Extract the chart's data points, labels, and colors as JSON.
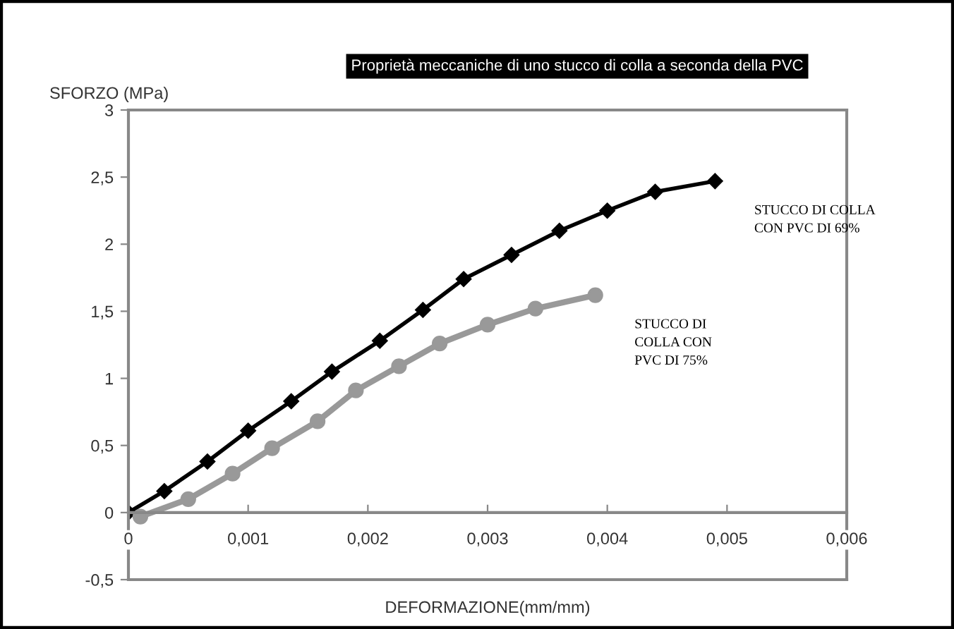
{
  "chart_data": {
    "type": "line",
    "title": "Proprietà meccaniche di uno stucco di colla a seconda della PVC",
    "ylabel": "SFORZO (MPa)",
    "xlabel": "DEFORMAZIONE(mm/mm)",
    "series": [
      {
        "name": "STUCCO DI COLLA\nCON PVC DI 69%",
        "color": "#000000",
        "marker": "diamond",
        "x": [
          0,
          0.0003,
          0.00066,
          0.001,
          0.00136,
          0.0017,
          0.0021,
          0.00246,
          0.0028,
          0.0032,
          0.0036,
          0.004,
          0.0044,
          0.0049
        ],
        "values": [
          0,
          0.16,
          0.38,
          0.61,
          0.83,
          1.05,
          1.28,
          1.51,
          1.74,
          1.92,
          2.1,
          2.25,
          2.39,
          2.47
        ]
      },
      {
        "name": "STUCCO DI\nCOLLA CON\nPVC DI 75%",
        "color": "#999999",
        "marker": "circle",
        "x": [
          0.0001,
          0.0005,
          0.00087,
          0.0012,
          0.00158,
          0.0019,
          0.00226,
          0.0026,
          0.003,
          0.0034,
          0.0039
        ],
        "values": [
          -0.03,
          0.1,
          0.29,
          0.48,
          0.68,
          0.91,
          1.09,
          1.26,
          1.4,
          1.52,
          1.62
        ]
      }
    ],
    "xlim": [
      0,
      0.006
    ],
    "ylim": [
      -0.5,
      3
    ],
    "xticks": [
      0,
      {
        "value": 0.001,
        "label": "0,001"
      },
      {
        "value": 0.002,
        "label": "0,002"
      },
      {
        "value": 0.003,
        "label": "0,003"
      },
      {
        "value": 0.004,
        "label": "0,004"
      },
      {
        "value": 0.005,
        "label": "0,005"
      },
      {
        "value": 0.006,
        "label": "0,006"
      }
    ],
    "yticks": [
      {
        "value": -0.5,
        "label": "-0,5"
      },
      0,
      {
        "value": 0.5,
        "label": "0,5"
      },
      1,
      {
        "value": 1.5,
        "label": "1,5"
      },
      2,
      {
        "value": 2.5,
        "label": "2,5"
      },
      3
    ],
    "grid": false,
    "legend": false,
    "line_style": "solid"
  }
}
